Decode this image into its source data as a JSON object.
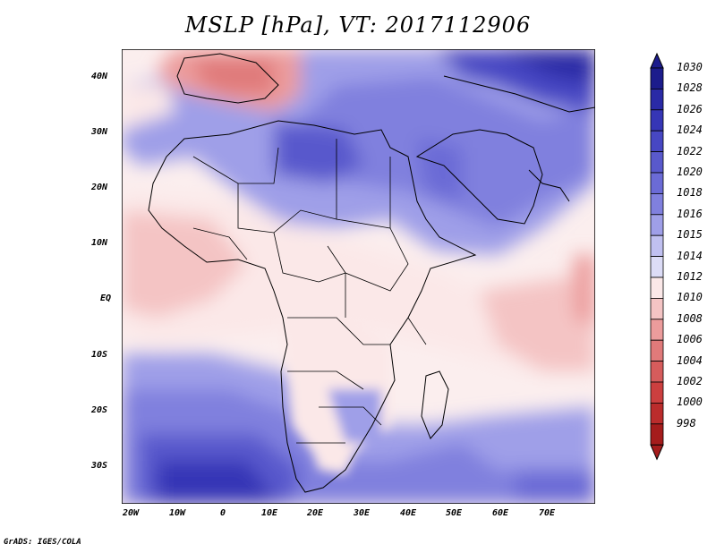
{
  "title": "MSLP [hPa], VT: 2017112906",
  "credit": "GrADS: IGES/COLA",
  "map": {
    "description_units": "hPa",
    "lat_labels": [
      "40N",
      "30N",
      "20N",
      "10N",
      "EQ",
      "10S",
      "20S",
      "30S"
    ],
    "lon_labels": [
      "20W",
      "10W",
      "0",
      "10E",
      "20E",
      "30E",
      "40E",
      "50E",
      "60E",
      "70E"
    ],
    "colors": {
      "red_998": "#a51c1c",
      "red_1008": "#e07a7a",
      "pink_1012": "#f4c4c4",
      "white_1014": "#fdf4f4",
      "blue_1016": "#c7c9f3",
      "blue_1020": "#7e7fdb",
      "blue_1026": "#2f2fae",
      "land_border": "#000000"
    }
  },
  "colorbar": {
    "levels": [
      "1030",
      "1028",
      "1026",
      "1024",
      "1022",
      "1020",
      "1018",
      "1016",
      "1015",
      "1014",
      "1012",
      "1010",
      "1008",
      "1006",
      "1004",
      "1002",
      "1000",
      "998"
    ],
    "colors": [
      "#1c1c8c",
      "#2a2aa6",
      "#3636b6",
      "#4747c3",
      "#5959cc",
      "#6b6bd6",
      "#8080de",
      "#9f9fe8",
      "#c0c0f0",
      "#dcdcf6",
      "#fbe8e8",
      "#f4c4c4",
      "#ec9c9c",
      "#e07a7a",
      "#d65c5c",
      "#cc3f3f",
      "#bb2c2c",
      "#a51c1c"
    ]
  }
}
